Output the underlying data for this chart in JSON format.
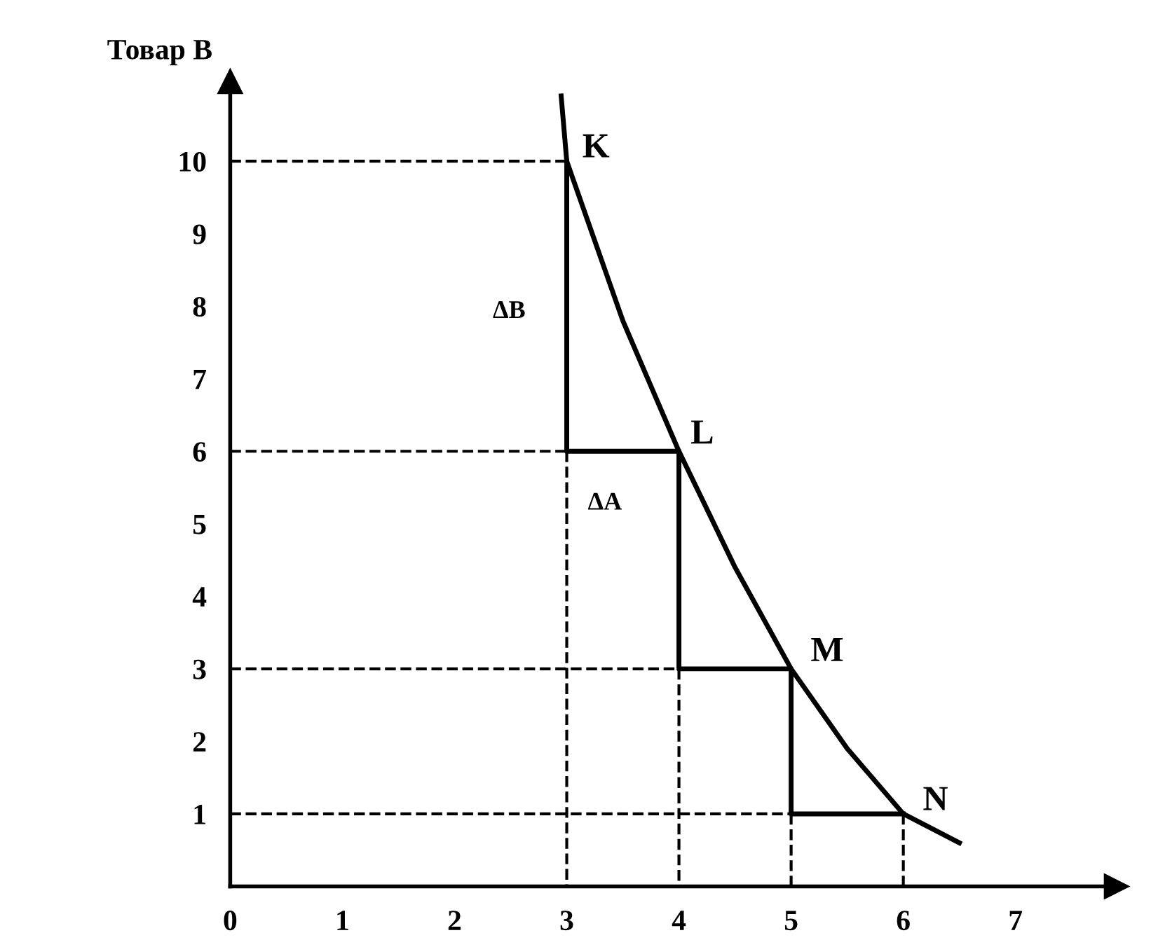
{
  "chart_data": {
    "type": "line",
    "ylabel": "Товар B",
    "xlim": [
      0,
      7.9
    ],
    "ylim": [
      0,
      11.1
    ],
    "xticks": [
      0,
      1,
      2,
      3,
      4,
      5,
      6,
      7
    ],
    "yticks": [
      1,
      2,
      3,
      4,
      5,
      6,
      7,
      8,
      9,
      10
    ],
    "grid": false,
    "legend": false,
    "marker": "none",
    "series": [
      {
        "color": "#000000",
        "line_style": "solid",
        "x": [
          2.95,
          3,
          3.5,
          4,
          4.5,
          5,
          5.5,
          6,
          6.5
        ],
        "values": [
          10.9,
          10,
          7.8,
          6,
          4.4,
          3,
          1.9,
          1,
          0.6
        ]
      },
      {
        "color": "#000000",
        "line_style": "solid",
        "x": [
          3,
          3,
          4,
          4,
          5,
          5,
          6
        ],
        "values": [
          10,
          6,
          6,
          3,
          3,
          1,
          1
        ]
      },
      {
        "color": "#000000",
        "line_style": "dashed",
        "x": [
          0,
          3
        ],
        "values": [
          10,
          10
        ]
      },
      {
        "color": "#000000",
        "line_style": "dashed",
        "x": [
          0,
          3
        ],
        "values": [
          6,
          6
        ]
      },
      {
        "color": "#000000",
        "line_style": "dashed",
        "x": [
          0,
          4
        ],
        "values": [
          3,
          3
        ]
      },
      {
        "color": "#000000",
        "line_style": "dashed",
        "x": [
          0,
          5
        ],
        "values": [
          1,
          1
        ]
      },
      {
        "color": "#000000",
        "line_style": "dashed",
        "x": [
          3,
          3
        ],
        "values": [
          6,
          0
        ]
      },
      {
        "color": "#000000",
        "line_style": "dashed",
        "x": [
          4,
          4
        ],
        "values": [
          3,
          0
        ]
      },
      {
        "color": "#000000",
        "line_style": "dashed",
        "x": [
          5,
          5
        ],
        "values": [
          1,
          0
        ]
      },
      {
        "color": "#000000",
        "line_style": "dashed",
        "x": [
          6,
          6
        ],
        "values": [
          1,
          0
        ]
      }
    ],
    "annotations": [
      {
        "text": "K",
        "x": 3,
        "y": 10
      },
      {
        "text": "L",
        "x": 4,
        "y": 6
      },
      {
        "text": "M",
        "x": 5,
        "y": 3
      },
      {
        "text": "N",
        "x": 6,
        "y": 1
      },
      {
        "text": "ΔB",
        "x": 3,
        "y": 8
      },
      {
        "text": "ΔA",
        "x": 3.5,
        "y": 6
      }
    ]
  }
}
